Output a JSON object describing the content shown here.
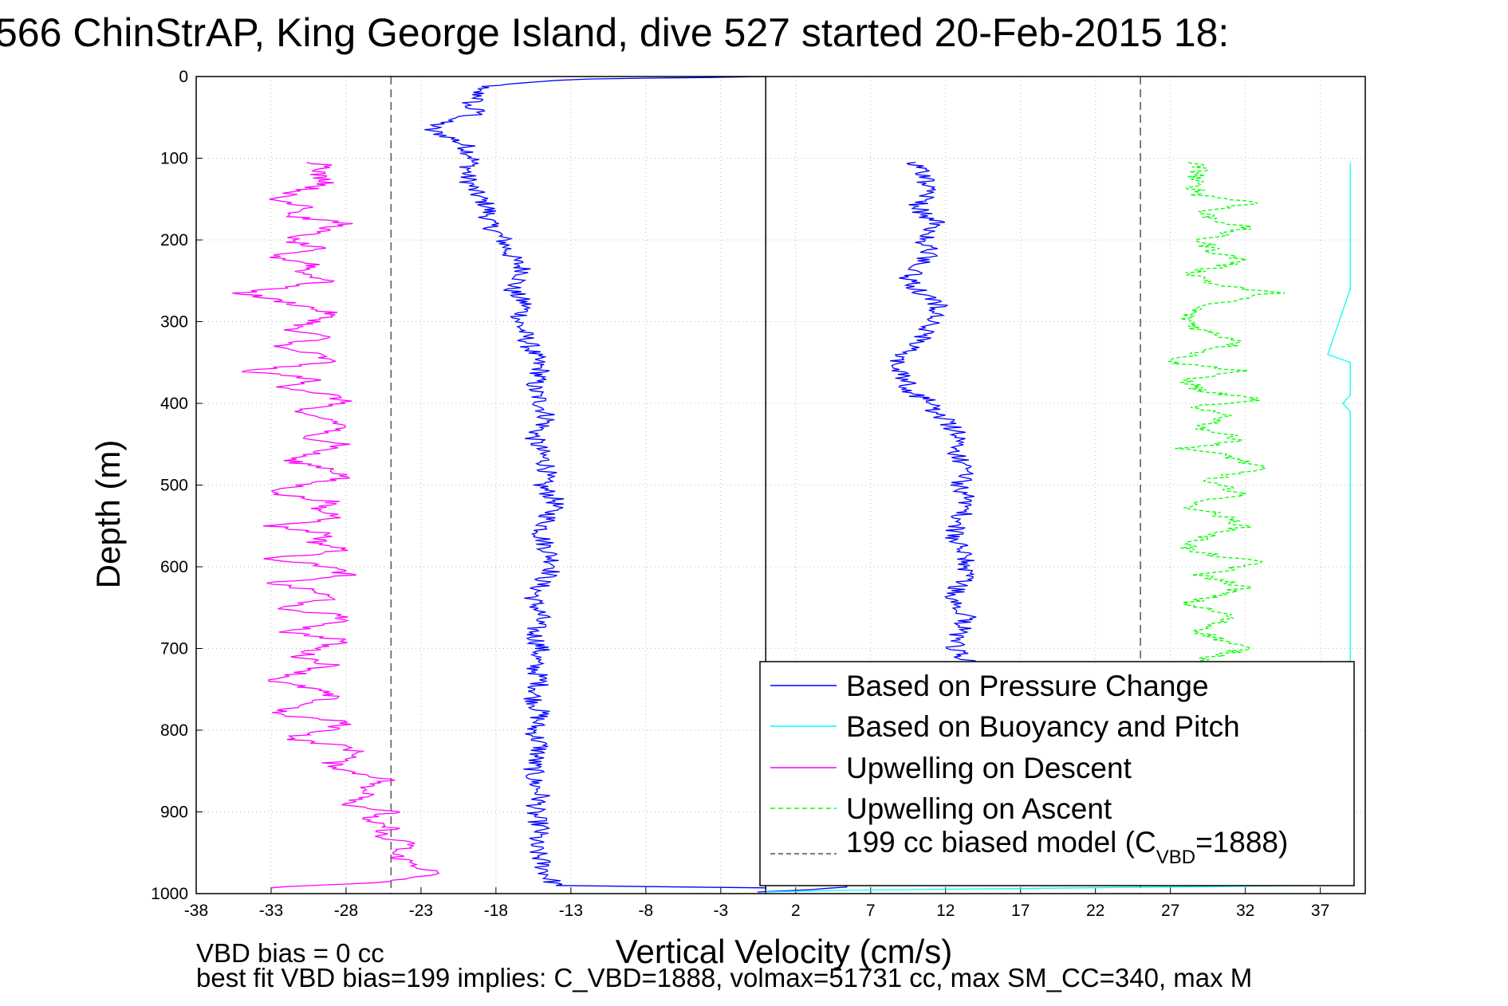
{
  "chart_data": {
    "type": "line",
    "title": "566 ChinStrAP, King George Island, dive 527 started 20-Feb-2015 18:",
    "xlabel": "Vertical Velocity (cm/s)",
    "ylabel": "Depth (m)",
    "xlim": [
      -38,
      40
    ],
    "ylim": [
      0,
      1000
    ],
    "y_reversed": true,
    "grid": true,
    "x_ticks": [
      "-38",
      "-33",
      "-28",
      "-23",
      "-18",
      "-13",
      "-8",
      "-3",
      "2",
      "7",
      "12",
      "17",
      "22",
      "27",
      "32",
      "37"
    ],
    "y_ticks": [
      "0",
      "100",
      "200",
      "300",
      "400",
      "500",
      "600",
      "700",
      "800",
      "900",
      "1000"
    ],
    "footer": {
      "line1": "VBD bias = 0 cc",
      "line2": "best fit VBD bias=199 implies: C_VBD=1888, volmax=51731 cc, max SM_CC=340, max M"
    },
    "legend": {
      "position": "bottom-right",
      "entries": [
        {
          "label": "Based on Pressure Change",
          "color": "#0000ff",
          "style": "solid"
        },
        {
          "label": "Based on Buoyancy and Pitch",
          "color": "#00ffff",
          "style": "solid"
        },
        {
          "label": "Upwelling on Descent",
          "color": "#ff00ff",
          "style": "solid"
        },
        {
          "label": "Upwelling on Ascent",
          "color": "#00ff00",
          "style": "dashed"
        },
        {
          "label": "199 cc biased model (C",
          "sub": "VBD",
          "suffix": "=1888)",
          "color": "#555555",
          "style": "dashed"
        }
      ]
    },
    "reference_lines": [
      {
        "name": "biased-model-descent",
        "x": -25,
        "color": "#555555",
        "style": "dashed"
      },
      {
        "name": "zero-velocity",
        "x": 0,
        "color": "#000000",
        "style": "solid"
      },
      {
        "name": "biased-model-ascent",
        "x": 25,
        "color": "#555555",
        "style": "dashed"
      }
    ],
    "series": [
      {
        "key": "pressure_descent",
        "color": "#0000ff",
        "style": "solid",
        "points": [
          [
            0,
            0
          ],
          [
            -3,
            1
          ],
          [
            -12,
            3
          ],
          [
            -17,
            8
          ],
          [
            -19.5,
            15
          ],
          [
            -19,
            25
          ],
          [
            -20,
            35
          ],
          [
            -19,
            45
          ],
          [
            -21.5,
            55
          ],
          [
            -22.5,
            65
          ],
          [
            -21,
            75
          ],
          [
            -20,
            85
          ],
          [
            -19.5,
            100
          ],
          [
            -20,
            120
          ],
          [
            -19.5,
            140
          ],
          [
            -18.5,
            160
          ],
          [
            -18.5,
            180
          ],
          [
            -17.5,
            200
          ],
          [
            -17,
            220
          ],
          [
            -16,
            240
          ],
          [
            -17,
            260
          ],
          [
            -16,
            280
          ],
          [
            -16.5,
            300
          ],
          [
            -16,
            320
          ],
          [
            -15.5,
            340
          ],
          [
            -15,
            360
          ],
          [
            -15.5,
            380
          ],
          [
            -15,
            400
          ],
          [
            -14.5,
            420
          ],
          [
            -15.5,
            440
          ],
          [
            -15,
            460
          ],
          [
            -14.5,
            480
          ],
          [
            -15,
            500
          ],
          [
            -14,
            520
          ],
          [
            -14.5,
            540
          ],
          [
            -15,
            560
          ],
          [
            -14.5,
            580
          ],
          [
            -14,
            600
          ],
          [
            -15,
            620
          ],
          [
            -15.5,
            640
          ],
          [
            -15,
            660
          ],
          [
            -15.5,
            680
          ],
          [
            -15,
            700
          ],
          [
            -15.5,
            720
          ],
          [
            -15,
            740
          ],
          [
            -15.5,
            760
          ],
          [
            -15,
            780
          ],
          [
            -15.5,
            800
          ],
          [
            -15,
            820
          ],
          [
            -15.5,
            840
          ],
          [
            -15.5,
            860
          ],
          [
            -15,
            880
          ],
          [
            -15.5,
            900
          ],
          [
            -15,
            920
          ],
          [
            -15.5,
            940
          ],
          [
            -15,
            960
          ],
          [
            -14.5,
            980
          ],
          [
            -14,
            990
          ],
          [
            -5,
            992
          ],
          [
            0,
            993
          ]
        ]
      },
      {
        "key": "pressure_ascent",
        "color": "#0000ff",
        "style": "solid",
        "points": [
          [
            0,
            998
          ],
          [
            5,
            992
          ],
          [
            8,
            985
          ],
          [
            11,
            960
          ],
          [
            12.5,
            900
          ],
          [
            13,
            850
          ],
          [
            13.5,
            800
          ],
          [
            13,
            750
          ],
          [
            13.5,
            715
          ],
          [
            12.5,
            700
          ],
          [
            13,
            680
          ],
          [
            13.5,
            660
          ],
          [
            12.5,
            640
          ],
          [
            13,
            620
          ],
          [
            13.5,
            600
          ],
          [
            13,
            580
          ],
          [
            12.5,
            560
          ],
          [
            13,
            540
          ],
          [
            13.5,
            520
          ],
          [
            13,
            500
          ],
          [
            13.5,
            480
          ],
          [
            12.5,
            460
          ],
          [
            13,
            440
          ],
          [
            12,
            420
          ],
          [
            11,
            410
          ],
          [
            11.5,
            400
          ],
          [
            10,
            390
          ],
          [
            9.5,
            380
          ],
          [
            9,
            360
          ],
          [
            8.5,
            345
          ],
          [
            10,
            330
          ],
          [
            10.5,
            320
          ],
          [
            11,
            300
          ],
          [
            11.5,
            280
          ],
          [
            10,
            260
          ],
          [
            9.5,
            245
          ],
          [
            10.5,
            230
          ],
          [
            11,
            215
          ],
          [
            10.5,
            200
          ],
          [
            11.5,
            180
          ],
          [
            10,
            160
          ],
          [
            11,
            140
          ],
          [
            10.5,
            120
          ],
          [
            10,
            105
          ]
        ]
      },
      {
        "key": "upwelling_descent",
        "color": "#ff00ff",
        "style": "solid",
        "points": [
          [
            -30,
            105
          ],
          [
            -29,
            110
          ],
          [
            -30,
            120
          ],
          [
            -29,
            130
          ],
          [
            -31,
            140
          ],
          [
            -33,
            150
          ],
          [
            -30,
            160
          ],
          [
            -32,
            170
          ],
          [
            -28,
            180
          ],
          [
            -30,
            190
          ],
          [
            -32,
            200
          ],
          [
            -30,
            210
          ],
          [
            -33,
            220
          ],
          [
            -30,
            230
          ],
          [
            -31,
            240
          ],
          [
            -29,
            250
          ],
          [
            -35,
            265
          ],
          [
            -31,
            280
          ],
          [
            -29,
            290
          ],
          [
            -30,
            300
          ],
          [
            -32,
            310
          ],
          [
            -29,
            320
          ],
          [
            -33,
            330
          ],
          [
            -30,
            340
          ],
          [
            -29,
            350
          ],
          [
            -35,
            360
          ],
          [
            -30,
            370
          ],
          [
            -32,
            380
          ],
          [
            -29,
            390
          ],
          [
            -28,
            400
          ],
          [
            -32,
            410
          ],
          [
            -29,
            420
          ],
          [
            -28,
            430
          ],
          [
            -31,
            440
          ],
          [
            -28,
            450
          ],
          [
            -30,
            460
          ],
          [
            -32,
            470
          ],
          [
            -29,
            480
          ],
          [
            -28,
            490
          ],
          [
            -31,
            500
          ],
          [
            -33,
            510
          ],
          [
            -29,
            520
          ],
          [
            -30,
            530
          ],
          [
            -28,
            540
          ],
          [
            -33,
            550
          ],
          [
            -29,
            560
          ],
          [
            -30,
            570
          ],
          [
            -28,
            580
          ],
          [
            -33,
            590
          ],
          [
            -29,
            600
          ],
          [
            -28,
            610
          ],
          [
            -33,
            620
          ],
          [
            -30,
            630
          ],
          [
            -29,
            640
          ],
          [
            -33,
            650
          ],
          [
            -28,
            660
          ],
          [
            -29,
            670
          ],
          [
            -32,
            680
          ],
          [
            -28,
            690
          ],
          [
            -30,
            700
          ],
          [
            -31,
            710
          ],
          [
            -29,
            720
          ],
          [
            -33,
            740
          ],
          [
            -30,
            750
          ],
          [
            -29,
            760
          ],
          [
            -33,
            780
          ],
          [
            -28,
            790
          ],
          [
            -29,
            800
          ],
          [
            -32,
            810
          ],
          [
            -28,
            820
          ],
          [
            -27,
            830
          ],
          [
            -29,
            840
          ],
          [
            -28,
            850
          ],
          [
            -25,
            860
          ],
          [
            -27,
            870
          ],
          [
            -26,
            880
          ],
          [
            -28,
            890
          ],
          [
            -25,
            900
          ],
          [
            -27,
            910
          ],
          [
            -25,
            920
          ],
          [
            -26,
            930
          ],
          [
            -23.5,
            940
          ],
          [
            -25,
            950
          ],
          [
            -24,
            960
          ],
          [
            -22,
            975
          ],
          [
            -25,
            985
          ],
          [
            -33,
            993
          ]
        ]
      },
      {
        "key": "upwelling_ascent",
        "color": "#00ff00",
        "style": "dashed",
        "points": [
          [
            28.5,
            105
          ],
          [
            29,
            115
          ],
          [
            28.5,
            130
          ],
          [
            29,
            145
          ],
          [
            33,
            155
          ],
          [
            29,
            165
          ],
          [
            30,
            175
          ],
          [
            32,
            185
          ],
          [
            29,
            200
          ],
          [
            30,
            215
          ],
          [
            32,
            225
          ],
          [
            28.5,
            240
          ],
          [
            30,
            255
          ],
          [
            34,
            265
          ],
          [
            29,
            280
          ],
          [
            28,
            295
          ],
          [
            29,
            310
          ],
          [
            32,
            325
          ],
          [
            28.5,
            340
          ],
          [
            27,
            350
          ],
          [
            32,
            360
          ],
          [
            28,
            370
          ],
          [
            29,
            385
          ],
          [
            33,
            395
          ],
          [
            28,
            405
          ],
          [
            31,
            415
          ],
          [
            29,
            430
          ],
          [
            32,
            445
          ],
          [
            28,
            455
          ],
          [
            31,
            465
          ],
          [
            33,
            480
          ],
          [
            29,
            495
          ],
          [
            32,
            510
          ],
          [
            28,
            525
          ],
          [
            30,
            535
          ],
          [
            32,
            550
          ],
          [
            29,
            565
          ],
          [
            28,
            580
          ],
          [
            33,
            595
          ],
          [
            29,
            610
          ],
          [
            32,
            625
          ],
          [
            28,
            645
          ],
          [
            31,
            660
          ],
          [
            29,
            680
          ],
          [
            32,
            700
          ],
          [
            29,
            715
          ]
        ]
      },
      {
        "key": "buoyancy_pitch",
        "color": "#00ffff",
        "style": "solid",
        "points": [
          [
            39,
            105
          ],
          [
            39,
            140
          ],
          [
            39,
            200
          ],
          [
            39,
            240
          ],
          [
            39,
            260
          ],
          [
            37.5,
            340
          ],
          [
            39,
            350
          ],
          [
            39,
            390
          ],
          [
            38.5,
            400
          ],
          [
            39,
            410
          ],
          [
            39,
            470
          ],
          [
            39,
            500
          ],
          [
            39,
            560
          ],
          [
            39,
            600
          ],
          [
            39,
            660
          ],
          [
            39,
            830
          ],
          [
            39,
            870
          ],
          [
            39,
            900
          ],
          [
            39,
            940
          ],
          [
            39,
            985
          ],
          [
            37,
            990
          ],
          [
            5,
            996
          ],
          [
            0,
            998
          ]
        ]
      }
    ]
  }
}
